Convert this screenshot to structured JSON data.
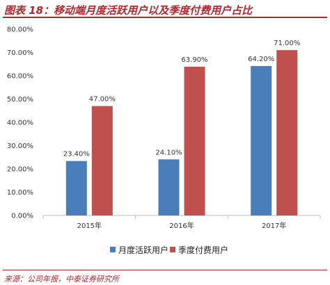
{
  "header": {
    "title": "图表 18：移动端月度活跃用户以及季度付费用户占比"
  },
  "footer": {
    "source": "来源：公司年报，中泰证券研究所"
  },
  "colors": {
    "monthly": "#4a7ebb",
    "quarterly": "#c0504d",
    "accent": "#b4262d",
    "axis": "#bfbfbf"
  },
  "chart_data": {
    "type": "bar",
    "categories": [
      "2015年",
      "2016年",
      "2017年"
    ],
    "series": [
      {
        "name": "月度活跃用户",
        "values": [
          23.4,
          24.1,
          64.2
        ],
        "labels": [
          "23.40%",
          "24.10%",
          "64.20%"
        ]
      },
      {
        "name": "季度付费用户",
        "values": [
          47.0,
          63.9,
          71.0
        ],
        "labels": [
          "47.00%",
          "63.90%",
          "71.00%"
        ]
      }
    ],
    "ylim": [
      0,
      80
    ],
    "yticks": [
      "0.00%",
      "10.00%",
      "20.00%",
      "30.00%",
      "40.00%",
      "50.00%",
      "60.00%",
      "70.00%",
      "80.00%"
    ],
    "grid": false,
    "legend": "bottom"
  }
}
